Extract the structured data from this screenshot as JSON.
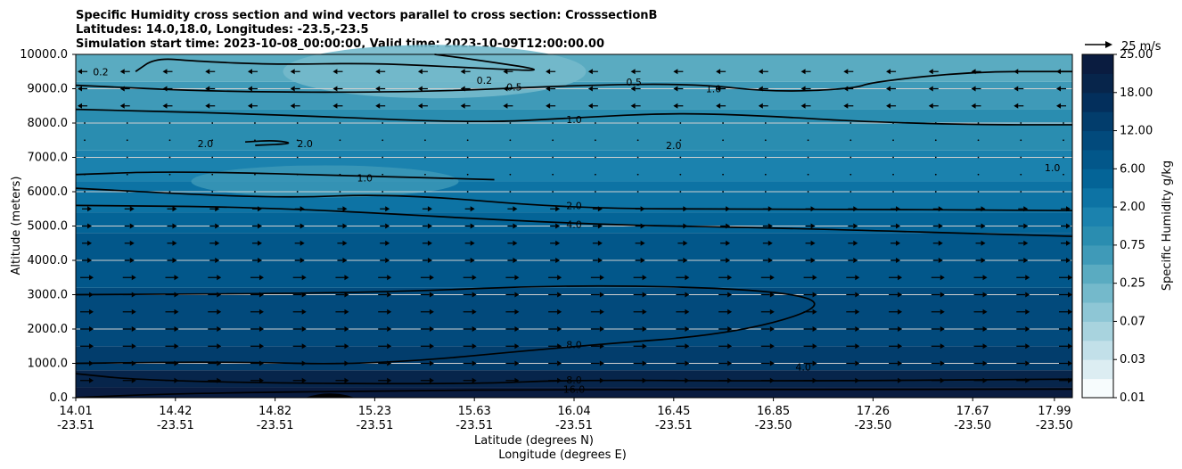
{
  "colors": {
    "levels": [
      "#f7fcfd",
      "#dcedf2",
      "#c2e0e9",
      "#a8d3de",
      "#8ec6d5",
      "#74b9cb",
      "#5aabc1",
      "#3f9ab8",
      "#2a8db0",
      "#1b82ae",
      "#0d73a4",
      "#046497",
      "#02578a",
      "#024a7c",
      "#023d6c",
      "#032f5c",
      "#07254b",
      "#0a1c40"
    ],
    "contour": "#000000",
    "grid": "#d0d0d0",
    "arrow": "#000000"
  },
  "chart_data": {
    "type": "heatmap",
    "title_lines": [
      "Specific Humidity cross section and wind vectors parallel to cross section: CrosssectionB",
      "Latitudes: 14.0,18.0, Longitudes: -23.5,-23.5",
      "Simulation start time: 2023-10-08_00:00:00, Valid time: 2023-10-09T12:00:00.00"
    ],
    "xlabel_lat": "Latitude (degrees N)",
    "xlabel_lon": "Longitude (degrees E)",
    "ylabel": "Altitude (meters)",
    "x_ticks": [
      {
        "lat": "14.01",
        "lon": "-23.51",
        "frac": 0.0
      },
      {
        "lat": "14.42",
        "lon": "-23.51",
        "frac": 0.1
      },
      {
        "lat": "14.82",
        "lon": "-23.51",
        "frac": 0.2
      },
      {
        "lat": "15.23",
        "lon": "-23.51",
        "frac": 0.3
      },
      {
        "lat": "15.63",
        "lon": "-23.51",
        "frac": 0.4
      },
      {
        "lat": "16.04",
        "lon": "-23.51",
        "frac": 0.5
      },
      {
        "lat": "16.45",
        "lon": "-23.51",
        "frac": 0.6
      },
      {
        "lat": "16.85",
        "lon": "-23.50",
        "frac": 0.7
      },
      {
        "lat": "17.26",
        "lon": "-23.50",
        "frac": 0.8
      },
      {
        "lat": "17.67",
        "lon": "-23.50",
        "frac": 0.9
      },
      {
        "lat": "17.99",
        "lon": "-23.50",
        "frac": 0.982
      }
    ],
    "y_ticks": [
      "0.0",
      "1000.0",
      "2000.0",
      "3000.0",
      "4000.0",
      "5000.0",
      "6000.0",
      "7000.0",
      "8000.0",
      "9000.0",
      "10000.0"
    ],
    "ylim": [
      0,
      10000
    ],
    "colorbar": {
      "label": "Specific Humidity g/kg",
      "tick_labels": [
        "0.01",
        "0.03",
        "0.07",
        "0.25",
        "0.75",
        "2.00",
        "6.00",
        "12.00",
        "18.00",
        "25.00"
      ]
    },
    "wind_key": {
      "label": "25 m/s",
      "value": 25
    },
    "contour_labels": [
      "0.2",
      "0.5",
      "1.0",
      "2.0",
      "4.0",
      "8.0",
      "16.0"
    ],
    "contours": [
      {
        "level": "16.0",
        "points": [
          [
            0.0,
            5
          ],
          [
            0.1,
            120
          ],
          [
            0.3,
            200
          ],
          [
            0.5,
            240
          ],
          [
            0.7,
            230
          ],
          [
            1.0,
            250
          ]
        ]
      },
      {
        "level": "8.0",
        "points": [
          [
            0.0,
            700
          ],
          [
            0.06,
            520
          ],
          [
            0.2,
            420
          ],
          [
            0.4,
            400
          ],
          [
            0.5,
            520
          ],
          [
            0.7,
            480
          ],
          [
            1.0,
            540
          ]
        ]
      },
      {
        "level": "8.0",
        "points": [
          [
            0.0,
            1000
          ],
          [
            0.15,
            1050
          ],
          [
            0.3,
            950
          ],
          [
            0.5,
            1500
          ],
          [
            0.66,
            1850
          ],
          [
            0.76,
            2700
          ],
          [
            0.7,
            3150
          ],
          [
            0.5,
            3300
          ],
          [
            0.3,
            3050
          ],
          [
            0.0,
            3000
          ]
        ]
      },
      {
        "level": "4.0",
        "points": [
          [
            0.0,
            5600
          ],
          [
            0.2,
            5550
          ],
          [
            0.5,
            5050
          ],
          [
            0.7,
            4950
          ],
          [
            1.0,
            4700
          ]
        ]
      },
      {
        "level": "2.0",
        "points": [
          [
            0.0,
            6100
          ],
          [
            0.2,
            5800
          ],
          [
            0.32,
            5950
          ],
          [
            0.5,
            5500
          ],
          [
            0.7,
            5500
          ],
          [
            1.0,
            5450
          ]
        ]
      },
      {
        "level": "1.0",
        "points": [
          [
            0.0,
            6500
          ],
          [
            0.1,
            6600
          ],
          [
            0.3,
            6450
          ],
          [
            0.42,
            6350
          ]
        ]
      },
      {
        "level": "1.0",
        "points": [
          [
            0.0,
            8400
          ],
          [
            0.2,
            8250
          ],
          [
            0.4,
            8000
          ],
          [
            0.5,
            8150
          ],
          [
            0.6,
            8300
          ],
          [
            0.7,
            8200
          ],
          [
            0.78,
            8050
          ],
          [
            0.9,
            7950
          ],
          [
            1.0,
            7950
          ]
        ]
      },
      {
        "level": "0.5",
        "points": [
          [
            0.0,
            9100
          ],
          [
            0.15,
            8900
          ],
          [
            0.35,
            8900
          ],
          [
            0.5,
            9100
          ],
          [
            0.62,
            9150
          ],
          [
            0.7,
            8900
          ],
          [
            0.78,
            9000
          ],
          [
            0.8,
            9200
          ],
          [
            0.9,
            9500
          ],
          [
            1.0,
            9500
          ]
        ]
      },
      {
        "level": "0.2",
        "points": [
          [
            0.06,
            9500
          ],
          [
            0.08,
            9900
          ],
          [
            0.12,
            9800
          ],
          [
            0.2,
            9700
          ],
          [
            0.3,
            9750
          ],
          [
            0.4,
            9600
          ],
          [
            0.48,
            9500
          ],
          [
            0.4,
            9850
          ],
          [
            0.36,
            10000
          ]
        ]
      },
      {
        "level": "2.0",
        "points": [
          [
            0.17,
            7450
          ],
          [
            0.2,
            7500
          ],
          [
            0.22,
            7400
          ],
          [
            0.18,
            7350
          ]
        ]
      }
    ],
    "label_positions": [
      {
        "text": "16.0",
        "x": 0.5,
        "y": 250
      },
      {
        "text": "8.0",
        "x": 0.5,
        "y": 520
      },
      {
        "text": "8.0",
        "x": 0.5,
        "y": 1550
      },
      {
        "text": "4.0",
        "x": 0.5,
        "y": 5050
      },
      {
        "text": "2.0",
        "x": 0.5,
        "y": 5600
      },
      {
        "text": "1.0",
        "x": 0.5,
        "y": 8100
      },
      {
        "text": "0.5",
        "x": 0.44,
        "y": 9050
      },
      {
        "text": "0.2",
        "x": 0.025,
        "y": 9500
      },
      {
        "text": "0.2",
        "x": 0.41,
        "y": 9250
      },
      {
        "text": "1.0",
        "x": 0.64,
        "y": 9000
      },
      {
        "text": "1.0",
        "x": 0.29,
        "y": 6400
      },
      {
        "text": "2.0",
        "x": 0.13,
        "y": 7400
      },
      {
        "text": "2.0",
        "x": 0.23,
        "y": 7400
      },
      {
        "text": "2.0",
        "x": 0.6,
        "y": 7350
      },
      {
        "text": "1.0",
        "x": 0.98,
        "y": 6700
      },
      {
        "text": "4.0",
        "x": 0.73,
        "y": 900
      },
      {
        "text": "0.5",
        "x": 0.56,
        "y": 9200
      }
    ]
  }
}
